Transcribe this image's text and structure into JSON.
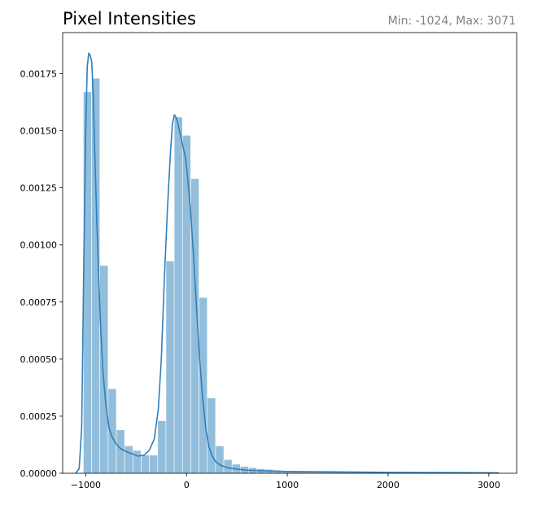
{
  "chart_data": {
    "type": "histogram",
    "title": "Pixel Intensities",
    "subtitle": "Min: -1024, Max: 3071",
    "xlabel": "",
    "ylabel": "",
    "xlim": [
      -1229,
      3276
    ],
    "ylim": [
      0,
      0.00193
    ],
    "x_ticks": [
      -1000,
      0,
      1000,
      2000,
      3000
    ],
    "x_tick_labels": [
      "−1000",
      "0",
      "1000",
      "2000",
      "3000"
    ],
    "y_ticks": [
      0.0,
      0.00025,
      0.0005,
      0.00075,
      0.001,
      0.00125,
      0.0015,
      0.00175
    ],
    "y_tick_labels": [
      "0.00000",
      "0.00025",
      "0.00050",
      "0.00075",
      "0.00100",
      "0.00125",
      "0.00150",
      "0.00175"
    ],
    "grid": false,
    "colors": {
      "bars": "#92bedb",
      "kde_line": "#2f7fbc",
      "title": "#000000",
      "subtitle": "#808080"
    },
    "histogram": {
      "bin_width": 82,
      "bins": [
        {
          "x0": -1024,
          "x1": -942,
          "density": 0.00167
        },
        {
          "x0": -942,
          "x1": -860,
          "density": 0.00173
        },
        {
          "x0": -860,
          "x1": -778,
          "density": 0.00091
        },
        {
          "x0": -778,
          "x1": -696,
          "density": 0.00037
        },
        {
          "x0": -696,
          "x1": -614,
          "density": 0.00019
        },
        {
          "x0": -614,
          "x1": -532,
          "density": 0.00012
        },
        {
          "x0": -532,
          "x1": -450,
          "density": 0.0001
        },
        {
          "x0": -450,
          "x1": -368,
          "density": 8e-05
        },
        {
          "x0": -368,
          "x1": -286,
          "density": 8e-05
        },
        {
          "x0": -286,
          "x1": -204,
          "density": 0.00023
        },
        {
          "x0": -204,
          "x1": -122,
          "density": 0.00093
        },
        {
          "x0": -122,
          "x1": -40,
          "density": 0.00156
        },
        {
          "x0": -40,
          "x1": 42,
          "density": 0.00148
        },
        {
          "x0": 42,
          "x1": 124,
          "density": 0.00129
        },
        {
          "x0": 124,
          "x1": 206,
          "density": 0.00077
        },
        {
          "x0": 206,
          "x1": 288,
          "density": 0.00033
        },
        {
          "x0": 288,
          "x1": 370,
          "density": 0.00012
        },
        {
          "x0": 370,
          "x1": 452,
          "density": 6e-05
        },
        {
          "x0": 452,
          "x1": 534,
          "density": 4e-05
        },
        {
          "x0": 534,
          "x1": 616,
          "density": 3e-05
        },
        {
          "x0": 616,
          "x1": 698,
          "density": 2.5e-05
        },
        {
          "x0": 698,
          "x1": 780,
          "density": 2e-05
        },
        {
          "x0": 780,
          "x1": 862,
          "density": 1.7e-05
        },
        {
          "x0": 862,
          "x1": 944,
          "density": 1.4e-05
        },
        {
          "x0": 944,
          "x1": 1026,
          "density": 1.2e-05
        },
        {
          "x0": 1026,
          "x1": 1108,
          "density": 1e-05
        },
        {
          "x0": 1108,
          "x1": 1190,
          "density": 9e-06
        },
        {
          "x0": 1190,
          "x1": 1272,
          "density": 8e-06
        },
        {
          "x0": 1272,
          "x1": 1354,
          "density": 7e-06
        },
        {
          "x0": 1354,
          "x1": 1436,
          "density": 7e-06
        },
        {
          "x0": 1436,
          "x1": 1518,
          "density": 6e-06
        },
        {
          "x0": 1518,
          "x1": 1600,
          "density": 6e-06
        },
        {
          "x0": 1600,
          "x1": 1682,
          "density": 5e-06
        },
        {
          "x0": 1682,
          "x1": 1764,
          "density": 5e-06
        },
        {
          "x0": 1764,
          "x1": 1846,
          "density": 5e-06
        },
        {
          "x0": 1846,
          "x1": 1928,
          "density": 5e-06
        },
        {
          "x0": 1928,
          "x1": 2010,
          "density": 4e-06
        },
        {
          "x0": 2010,
          "x1": 2092,
          "density": 4e-06
        },
        {
          "x0": 2092,
          "x1": 2174,
          "density": 4e-06
        },
        {
          "x0": 2174,
          "x1": 2256,
          "density": 4e-06
        },
        {
          "x0": 2256,
          "x1": 2338,
          "density": 4e-06
        },
        {
          "x0": 2338,
          "x1": 2420,
          "density": 4e-06
        },
        {
          "x0": 2420,
          "x1": 2502,
          "density": 3e-06
        },
        {
          "x0": 2502,
          "x1": 2584,
          "density": 3e-06
        },
        {
          "x0": 2584,
          "x1": 2666,
          "density": 3e-06
        },
        {
          "x0": 2666,
          "x1": 2748,
          "density": 3e-06
        },
        {
          "x0": 2748,
          "x1": 2830,
          "density": 3e-06
        },
        {
          "x0": 2830,
          "x1": 2912,
          "density": 3e-06
        },
        {
          "x0": 2912,
          "x1": 2994,
          "density": 3e-06
        },
        {
          "x0": 2994,
          "x1": 3071,
          "density": 3e-06
        }
      ]
    },
    "kde": {
      "x": [
        -1100,
        -1065,
        -1040,
        -1020,
        -1000,
        -985,
        -970,
        -955,
        -940,
        -925,
        -910,
        -890,
        -870,
        -850,
        -830,
        -800,
        -770,
        -740,
        -700,
        -660,
        -600,
        -540,
        -480,
        -420,
        -370,
        -320,
        -280,
        -250,
        -220,
        -190,
        -160,
        -140,
        -120,
        -105,
        -90,
        -70,
        -50,
        -30,
        -10,
        10,
        40,
        70,
        100,
        130,
        160,
        190,
        220,
        250,
        290,
        340,
        400,
        500,
        600,
        800,
        1000,
        1500,
        2000,
        2500,
        3000,
        3100
      ],
      "y": [
        0.0,
        2e-05,
        0.0002,
        0.0009,
        0.0015,
        0.00178,
        0.00184,
        0.00183,
        0.0018,
        0.00165,
        0.0014,
        0.0011,
        0.00084,
        0.00062,
        0.00045,
        0.0003,
        0.0002,
        0.00016,
        0.00013,
        0.00011,
        9.5e-05,
        8.5e-05,
        7.5e-05,
        8e-05,
        0.0001,
        0.00015,
        0.00028,
        0.0005,
        0.00085,
        0.00115,
        0.0014,
        0.00153,
        0.00157,
        0.00156,
        0.00154,
        0.0015,
        0.00146,
        0.00142,
        0.00138,
        0.0013,
        0.00115,
        0.00095,
        0.00072,
        0.0005,
        0.00033,
        0.0002,
        0.00012,
        8e-05,
        5e-05,
        3.5e-05,
        2.5e-05,
        1.8e-05,
        1.3e-05,
        1e-05,
        8e-06,
        6e-06,
        4e-06,
        3e-06,
        2e-06,
        1.5e-06
      ]
    }
  }
}
